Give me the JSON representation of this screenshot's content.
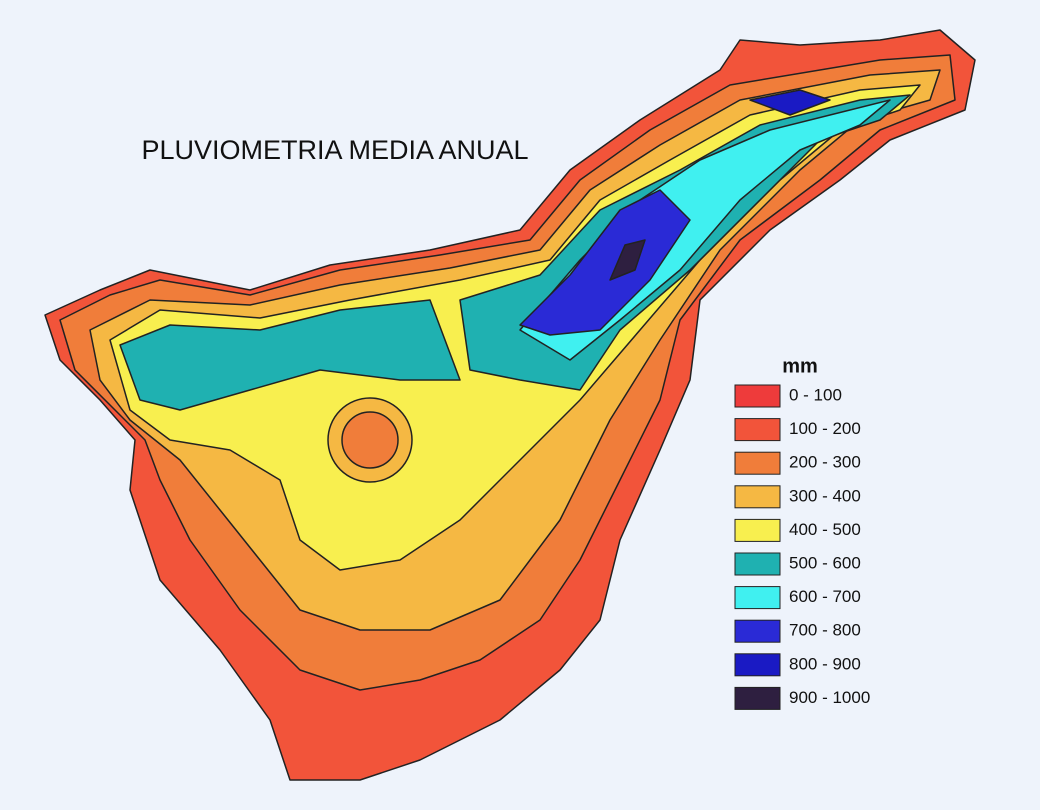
{
  "title": "PLUVIOMETRIA MEDIA ANUAL",
  "legend": {
    "title": "mm",
    "items": [
      {
        "label": "0 - 100",
        "color": "#ee3b3b"
      },
      {
        "label": "100 - 200",
        "color": "#f2543a"
      },
      {
        "label": "200 - 300",
        "color": "#f07d3a"
      },
      {
        "label": "300 - 400",
        "color": "#f5b843"
      },
      {
        "label": "400 - 500",
        "color": "#f8ef4f"
      },
      {
        "label": "500 - 600",
        "color": "#1fb1b1"
      },
      {
        "label": "600 - 700",
        "color": "#40f0f0"
      },
      {
        "label": "700 - 800",
        "color": "#2a2ad6"
      },
      {
        "label": "800 - 900",
        "color": "#1a1ac4"
      },
      {
        "label": "900 - 1000",
        "color": "#2e1f40"
      }
    ]
  }
}
